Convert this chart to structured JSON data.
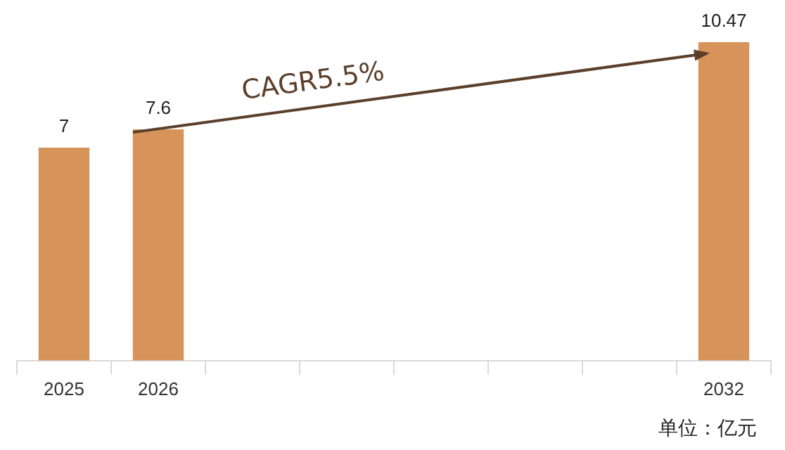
{
  "chart_data": {
    "type": "bar",
    "categories": [
      "2025",
      "2026",
      null,
      null,
      null,
      null,
      null,
      "2032"
    ],
    "values": [
      7,
      7.6,
      null,
      null,
      null,
      null,
      null,
      10.47
    ],
    "color": "#d6935a",
    "data_labels": true,
    "grid": false,
    "legend": false,
    "tick_labels": "x",
    "annotations": [
      "CAGR5.5%",
      "单位：亿元"
    ]
  }
}
